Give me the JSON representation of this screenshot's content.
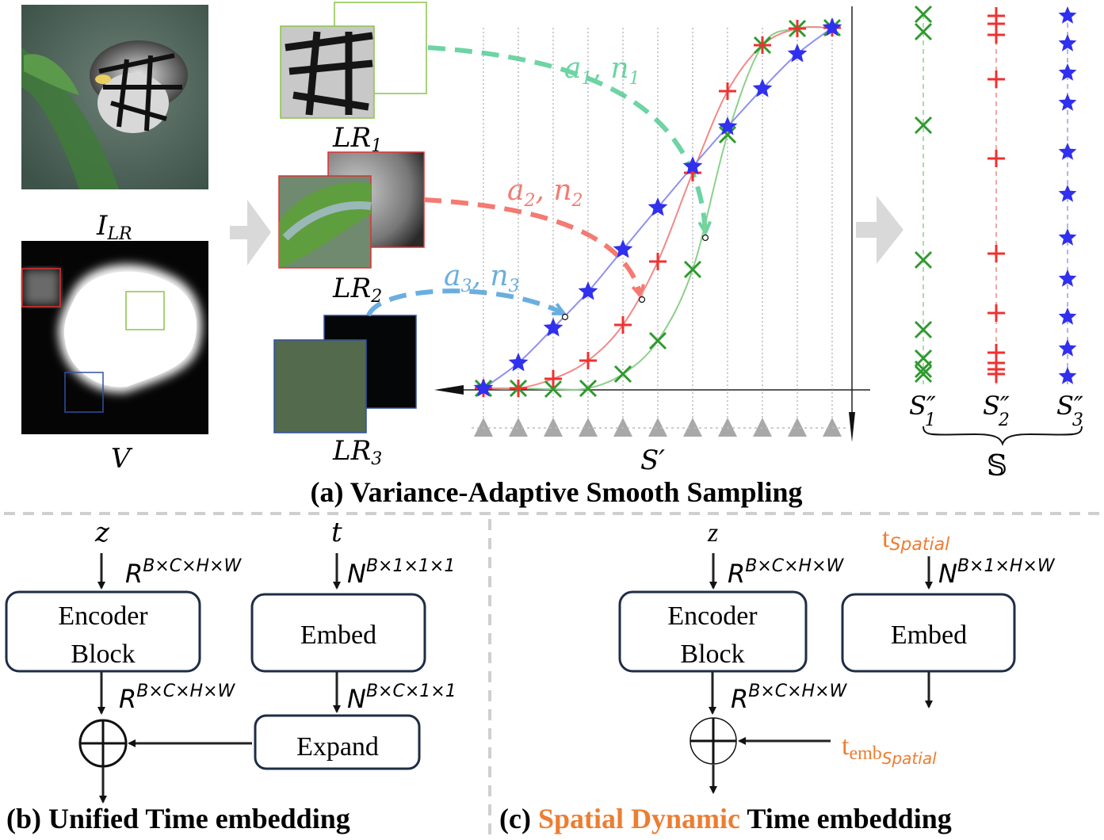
{
  "panel_a": {
    "title": "(a) Variance-Adaptive Smooth Sampling",
    "image_label": "I",
    "image_label_sub": "LR",
    "variance_label": "V",
    "lr1": "LR",
    "lr1_sub": "1",
    "lr2": "LR",
    "lr2_sub": "2",
    "lr3": "LR",
    "lr3_sub": "3",
    "arrow1": "a",
    "arrow1_sub_a": "1",
    "arrow1_n": "n",
    "arrow1_sub_n": "1",
    "arrow2": "a",
    "arrow2_sub_a": "2",
    "arrow2_n": "n",
    "arrow2_sub_n": "2",
    "arrow3": "a",
    "arrow3_sub_a": "3",
    "arrow3_n": "n",
    "arrow3_sub_n": "3",
    "s_prime": "S′",
    "s1": "S″",
    "s1_sub": "1",
    "s2": "S″",
    "s2_sub": "2",
    "s3": "S″",
    "s3_sub": "3",
    "s_set": "𝕊",
    "colors": {
      "green": "#2e9a2e",
      "red": "#f03030",
      "blue": "#3030ee",
      "teal_arrow": "#6dd4a4",
      "salmon_arrow": "#f47a72",
      "sky_arrow": "#6aaee0"
    }
  },
  "panel_b": {
    "title": "(b) Unified Time embedding",
    "z": "z",
    "t": "t",
    "enc_line1": "Encoder",
    "enc_line2": "Block",
    "embed": "Embed",
    "expand": "Expand",
    "shape_in_z": "R",
    "shape_in_z_sup": "B×C×H×W",
    "shape_in_t": "N",
    "shape_in_t_sup": "B×1×1×1",
    "shape_out_enc": "R",
    "shape_out_enc_sup": "B×C×H×W",
    "shape_out_emb": "N",
    "shape_out_emb_sup": "B×C×1×1"
  },
  "panel_c": {
    "title_pre": "(c) ",
    "title_highlight": "Spatial Dynamic",
    "title_post": " Time embedding",
    "z": "z",
    "t_spatial": "t",
    "t_spatial_sub": "Spatial",
    "enc_line1": "Encoder",
    "enc_line2": "Block",
    "embed": "Embed",
    "shape_in_z": "R",
    "shape_in_z_sup": "B×C×H×W",
    "shape_in_t": "N",
    "shape_in_t_sup": "B×1×H×W",
    "shape_out_enc": "R",
    "shape_out_enc_sup": "B×C×H×W",
    "t_emb": "t",
    "t_emb_sub": "emb",
    "t_emb_subsub": "Spatial",
    "highlight_color": "#ed7d31"
  }
}
